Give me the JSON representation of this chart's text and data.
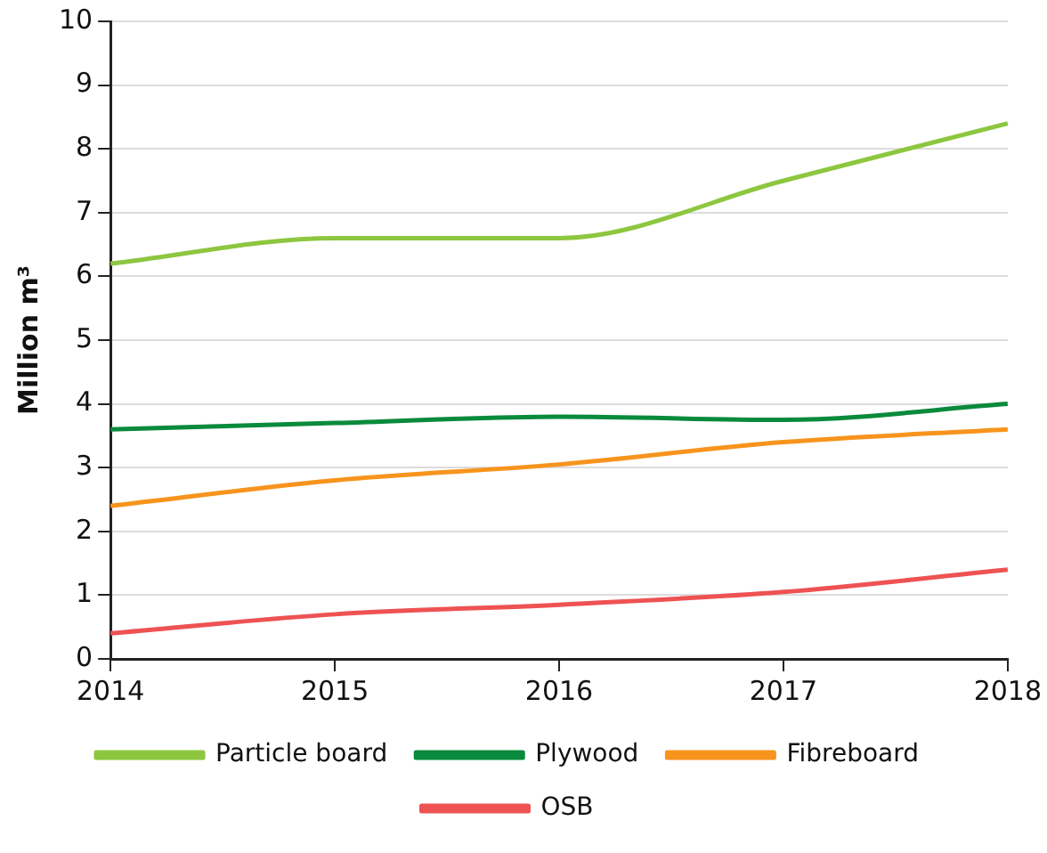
{
  "chart_data": {
    "type": "line",
    "ylabel": "Million m³",
    "categories": [
      "2014",
      "2015",
      "2016",
      "2017",
      "2018"
    ],
    "series": [
      {
        "name": "Particle board",
        "color": "#8dc63f",
        "values": [
          6.2,
          6.6,
          6.6,
          7.5,
          8.4
        ]
      },
      {
        "name": "Plywood",
        "color": "#0a8a3c",
        "values": [
          3.6,
          3.7,
          3.8,
          3.75,
          4.0
        ]
      },
      {
        "name": "Fibreboard",
        "color": "#f7941d",
        "values": [
          2.4,
          2.8,
          3.05,
          3.4,
          3.6
        ]
      },
      {
        "name": "OSB",
        "color": "#ee5253",
        "values": [
          0.4,
          0.7,
          0.85,
          1.05,
          1.4
        ]
      }
    ],
    "ylim": [
      0,
      10
    ],
    "yticks": [
      0,
      1,
      2,
      3,
      4,
      5,
      6,
      7,
      8,
      9,
      10
    ],
    "grid": "y",
    "legend": "bottom",
    "marker": "none",
    "line_style": "solid"
  }
}
